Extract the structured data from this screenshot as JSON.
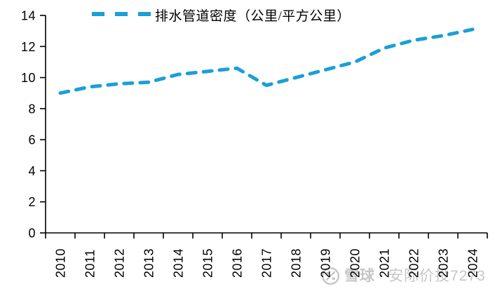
{
  "chart_data": {
    "type": "line",
    "title": "",
    "categories": [
      "2010",
      "2011",
      "2012",
      "2013",
      "2014",
      "2015",
      "2016",
      "2017",
      "2018",
      "2019",
      "2020",
      "2021",
      "2022",
      "2023",
      "2024"
    ],
    "series": [
      {
        "name": "排水管道密度（公里/平方公里）",
        "values": [
          9.0,
          9.4,
          9.6,
          9.7,
          10.2,
          10.4,
          10.6,
          9.5,
          10.0,
          10.5,
          11.0,
          11.9,
          12.4,
          12.7,
          13.1
        ],
        "color": "#1b9fd6",
        "line_style": "dashed"
      }
    ],
    "xlabel": "",
    "ylabel": "",
    "ylim": [
      0,
      14
    ],
    "y_ticks": [
      0,
      2,
      4,
      6,
      8,
      10,
      12,
      14
    ],
    "grid": false,
    "legend_position": "top-left",
    "x_tick_label_rotation": -90,
    "axis_color": "#000000"
  },
  "watermark": {
    "brand": "雪球",
    "separator": "·",
    "username": "安际价投7273"
  }
}
